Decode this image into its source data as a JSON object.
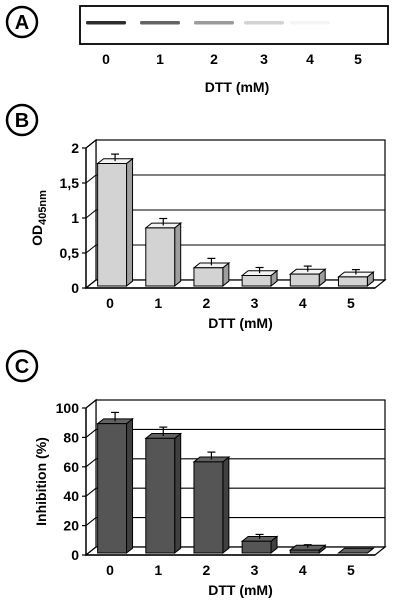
{
  "panels": {
    "a": {
      "letter": "A"
    },
    "b": {
      "letter": "B"
    },
    "c": {
      "letter": "C"
    }
  },
  "chart_data": [
    {
      "panel": "A",
      "type": "other",
      "description_values": {
        "band_intensity": [
          0.95,
          0.7,
          0.45,
          0.2,
          0.05,
          0.0
        ]
      },
      "categories": [
        "0",
        "1",
        "2",
        "3",
        "4",
        "5"
      ],
      "xlabel": "DTT (mM)"
    },
    {
      "panel": "B",
      "type": "bar",
      "categories": [
        "0",
        "1",
        "2",
        "3",
        "4",
        "5"
      ],
      "values": [
        1.75,
        0.83,
        0.26,
        0.15,
        0.17,
        0.13
      ],
      "errors": [
        0.1,
        0.1,
        0.1,
        0.08,
        0.08,
        0.07
      ],
      "yticks": [
        "0",
        "0,5",
        "1",
        "1,5",
        "2"
      ],
      "ylim": [
        0,
        2
      ],
      "xlabel": "DTT (mM)",
      "ylabel": "OD",
      "ylabel_sub": "405nm",
      "bar_color": "#d3d3d3",
      "grid": true
    },
    {
      "panel": "C",
      "type": "bar",
      "categories": [
        "0",
        "1",
        "2",
        "3",
        "4",
        "5"
      ],
      "values": [
        88,
        78,
        62,
        8,
        2,
        0
      ],
      "errors": [
        6,
        6,
        5,
        3,
        2,
        0
      ],
      "yticks": [
        "0",
        "20",
        "40",
        "60",
        "80",
        "100"
      ],
      "ylim": [
        0,
        100
      ],
      "xlabel": "DTT (mM)",
      "ylabel": "Inhibition (%)",
      "bar_color": "#555555",
      "grid": true
    }
  ]
}
